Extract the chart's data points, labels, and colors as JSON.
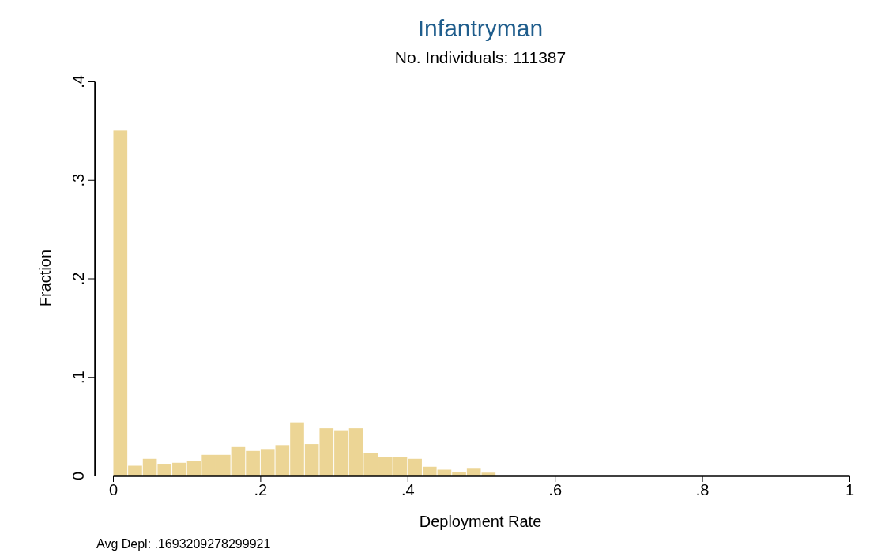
{
  "chart_data": {
    "type": "histogram",
    "title": "Infantryman",
    "subtitle": "No. Individuals: 111387",
    "xlabel": "Deployment Rate",
    "ylabel": "Fraction",
    "bins": [
      0,
      0.02,
      0.04,
      0.06,
      0.08,
      0.1,
      0.12,
      0.14,
      0.16,
      0.18,
      0.2,
      0.22,
      0.24,
      0.26,
      0.28,
      0.3,
      0.32,
      0.34,
      0.36,
      0.38,
      0.4,
      0.42,
      0.44,
      0.46,
      0.48,
      0.5,
      0.52
    ],
    "values": [
      0.35,
      0.01,
      0.017,
      0.012,
      0.013,
      0.015,
      0.021,
      0.021,
      0.029,
      0.025,
      0.027,
      0.031,
      0.054,
      0.032,
      0.048,
      0.046,
      0.048,
      0.023,
      0.019,
      0.019,
      0.017,
      0.009,
      0.006,
      0.004,
      0.007,
      0.003
    ],
    "color": "#ecd595",
    "xlim": [
      0,
      1
    ],
    "xticks": [
      0,
      {
        "value": 0.2,
        "label": ".2"
      },
      {
        "value": 0.4,
        "label": ".4"
      },
      {
        "value": 0.6,
        "label": ".6"
      },
      {
        "value": 0.8,
        "label": ".8"
      },
      1
    ],
    "ylim": [
      0,
      0.4
    ],
    "yticks": [
      0,
      {
        "value": 0.1,
        "label": ".1"
      },
      {
        "value": 0.2,
        "label": ".2"
      },
      {
        "value": 0.3,
        "label": ".3"
      },
      {
        "value": 0.4,
        "label": ".4"
      }
    ],
    "annotations": [
      "Avg Depl: .1693209278299921"
    ]
  }
}
